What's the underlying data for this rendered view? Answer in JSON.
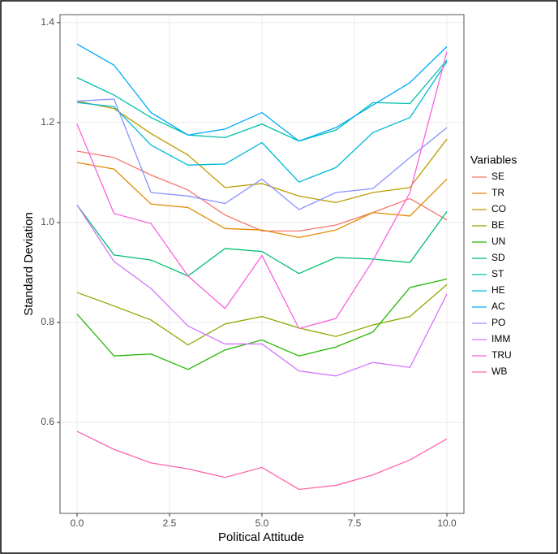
{
  "chart_data": {
    "type": "line",
    "x_label": "Political Attitude",
    "y_label": "Standard Deviation",
    "legend_title": "Variables",
    "x": [
      0,
      1,
      2,
      3,
      4,
      5,
      6,
      7,
      8,
      9,
      10
    ],
    "xlim": [
      -0.46,
      10.46
    ],
    "xticks": [
      {
        "value": 0,
        "label": "0.0"
      },
      2.5,
      {
        "value": 5,
        "label": "5.0"
      },
      7.5,
      {
        "value": 10,
        "label": "10.0"
      }
    ],
    "ylim": [
      0.418,
      1.416
    ],
    "yticks": [
      0.6,
      0.8,
      {
        "value": 1,
        "label": "1.0"
      },
      1.2,
      1.4
    ],
    "grid": true,
    "legend": "right",
    "series": [
      {
        "name": "SE",
        "color": "#F8766D",
        "values": [
          1.143,
          1.13,
          1.095,
          1.065,
          1.015,
          0.983,
          0.983,
          0.995,
          1.02,
          1.048,
          1.005
        ]
      },
      {
        "name": "TR",
        "color": "#E18A00",
        "values": [
          1.12,
          1.107,
          1.037,
          1.03,
          0.988,
          0.985,
          0.97,
          0.985,
          1.02,
          1.013,
          1.087
        ]
      },
      {
        "name": "CO",
        "color": "#BE9C00",
        "values": [
          1.243,
          1.228,
          1.178,
          1.135,
          1.07,
          1.078,
          1.053,
          1.04,
          1.06,
          1.07,
          1.167
        ]
      },
      {
        "name": "BE",
        "color": "#8CAB00",
        "values": [
          0.86,
          0.833,
          0.805,
          0.755,
          0.797,
          0.812,
          0.789,
          0.772,
          0.795,
          0.812,
          0.876
        ]
      },
      {
        "name": "UN",
        "color": "#24B700",
        "values": [
          0.817,
          0.733,
          0.737,
          0.706,
          0.745,
          0.765,
          0.733,
          0.751,
          0.781,
          0.87,
          0.887
        ]
      },
      {
        "name": "SD",
        "color": "#00BE70",
        "values": [
          1.035,
          0.935,
          0.925,
          0.893,
          0.948,
          0.942,
          0.898,
          0.93,
          0.927,
          0.92,
          1.022
        ]
      },
      {
        "name": "ST",
        "color": "#00C1AB",
        "values": [
          1.29,
          1.255,
          1.21,
          1.175,
          1.17,
          1.197,
          1.163,
          1.185,
          1.24,
          1.238,
          1.325
        ]
      },
      {
        "name": "HE",
        "color": "#00BBDA",
        "values": [
          1.24,
          1.232,
          1.155,
          1.115,
          1.117,
          1.16,
          1.081,
          1.11,
          1.18,
          1.21,
          1.322
        ]
      },
      {
        "name": "AC",
        "color": "#00ACFC",
        "values": [
          1.357,
          1.315,
          1.22,
          1.175,
          1.187,
          1.22,
          1.163,
          1.19,
          1.235,
          1.28,
          1.352
        ]
      },
      {
        "name": "PO",
        "color": "#8B93FF",
        "values": [
          1.243,
          1.247,
          1.06,
          1.053,
          1.038,
          1.087,
          1.026,
          1.06,
          1.068,
          1.13,
          1.19
        ]
      },
      {
        "name": "IMM",
        "color": "#D575FE",
        "values": [
          1.035,
          0.922,
          0.868,
          0.793,
          0.757,
          0.757,
          0.703,
          0.693,
          0.72,
          0.71,
          0.857
        ]
      },
      {
        "name": "TRU",
        "color": "#F962DD",
        "values": [
          1.197,
          1.018,
          0.998,
          0.893,
          0.828,
          0.934,
          0.788,
          0.808,
          0.924,
          1.06,
          1.342
        ]
      },
      {
        "name": "WB",
        "color": "#FF65AC",
        "values": [
          0.582,
          0.546,
          0.519,
          0.507,
          0.49,
          0.51,
          0.466,
          0.474,
          0.495,
          0.525,
          0.567
        ]
      }
    ]
  }
}
